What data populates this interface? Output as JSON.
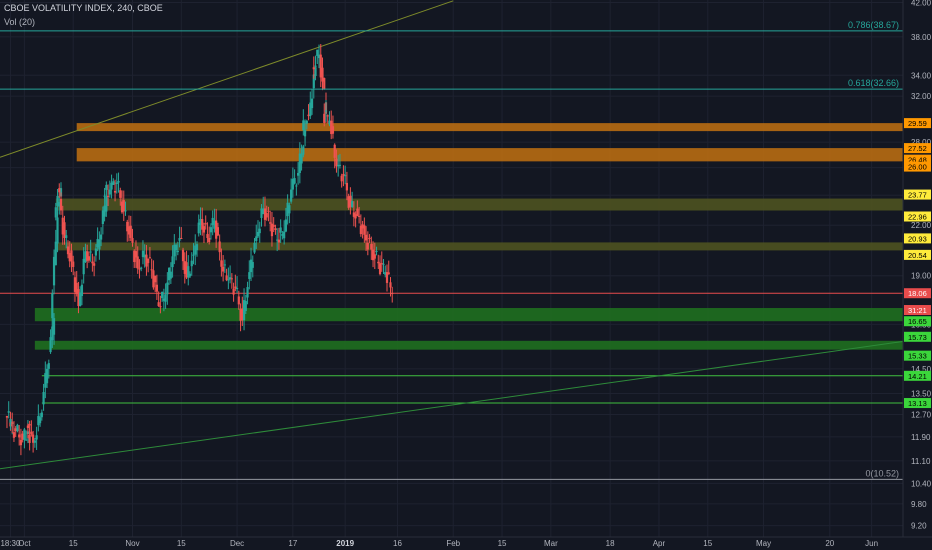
{
  "header": {
    "title": "CBOE VOLATILITY INDEX, 240, CBOE",
    "volume_indicator": "Vol (20)"
  },
  "colors": {
    "background": "#131722",
    "grid": "#1e2230",
    "up_candle": "#26a69a",
    "down_candle": "#ef5350",
    "fib_line": "#26a69a",
    "trendline": "#7e8b2a",
    "orange_band": "#b86c12",
    "olive_band": "#4e5220",
    "green_band": "#1f6f1f",
    "green_line": "#3fbf3f",
    "red_line": "#e84c4c",
    "axis_text": "#b2b5be"
  },
  "chart_data": {
    "type": "candlestick",
    "title": "CBOE VOLATILITY INDEX, 240, CBOE",
    "y_scale": "log",
    "ylim": [
      8.9,
      42.3
    ],
    "xlim": [
      "2018-09-24",
      "2019-06-10"
    ],
    "grid": true,
    "y_ticks": [
      "42.00",
      "38.00",
      "34.00",
      "32.00",
      "28.00",
      "26.00",
      "24.00",
      "22.00",
      "19.00",
      "16.50",
      "14.50",
      "13.50",
      "12.70",
      "11.90",
      "11.10",
      "10.40",
      "9.80",
      "9.20"
    ],
    "x_ticks": [
      {
        "label": "18:30",
        "date": "2018-09-27"
      },
      {
        "label": "Oct",
        "date": "2018-10-01"
      },
      {
        "label": "15",
        "date": "2018-10-15"
      },
      {
        "label": "Nov",
        "date": "2018-11-01"
      },
      {
        "label": "15",
        "date": "2018-11-15"
      },
      {
        "label": "Dec",
        "date": "2018-12-01"
      },
      {
        "label": "17",
        "date": "2018-12-17"
      },
      {
        "label": "2019",
        "date": "2019-01-01"
      },
      {
        "label": "16",
        "date": "2019-01-16"
      },
      {
        "label": "Feb",
        "date": "2019-02-01"
      },
      {
        "label": "15",
        "date": "2019-02-15"
      },
      {
        "label": "Mar",
        "date": "2019-03-01"
      },
      {
        "label": "18",
        "date": "2019-03-18"
      },
      {
        "label": "Apr",
        "date": "2019-04-01"
      },
      {
        "label": "15",
        "date": "2019-04-15"
      },
      {
        "label": "May",
        "date": "2019-05-01"
      },
      {
        "label": "20",
        "date": "2019-05-20"
      },
      {
        "label": "Jun",
        "date": "2019-06-01"
      }
    ],
    "price_series": {
      "x": [
        "2018-09-27",
        "2018-09-28",
        "2018-09-30",
        "2018-10-02",
        "2018-10-03",
        "2018-10-05",
        "2018-10-07",
        "2018-10-09",
        "2018-10-10",
        "2018-10-11",
        "2018-10-12",
        "2018-10-14",
        "2018-10-16",
        "2018-10-18",
        "2018-10-20",
        "2018-10-22",
        "2018-10-24",
        "2018-10-25",
        "2018-10-27",
        "2018-10-29",
        "2018-10-31",
        "2018-11-02",
        "2018-11-04",
        "2018-11-06",
        "2018-11-08",
        "2018-11-10",
        "2018-11-12",
        "2018-11-14",
        "2018-11-16",
        "2018-11-18",
        "2018-11-20",
        "2018-11-22",
        "2018-11-24",
        "2018-11-26",
        "2018-11-28",
        "2018-11-30",
        "2018-12-02",
        "2018-12-04",
        "2018-12-06",
        "2018-12-08",
        "2018-12-10",
        "2018-12-12",
        "2018-12-14",
        "2018-12-16",
        "2018-12-18",
        "2018-12-20",
        "2018-12-21",
        "2018-12-23",
        "2018-12-24",
        "2018-12-26",
        "2018-12-27",
        "2018-12-29",
        "2018-12-31",
        "2019-01-02",
        "2019-01-04",
        "2019-01-06",
        "2019-01-08",
        "2019-01-10",
        "2019-01-12",
        "2019-01-14"
      ],
      "close": [
        12.4,
        12.1,
        11.8,
        12.3,
        11.7,
        12.6,
        14.5,
        16.8,
        22.5,
        24.5,
        21.2,
        19.8,
        17.4,
        20.4,
        19.7,
        21.1,
        23.9,
        24.4,
        24.9,
        22.9,
        21.2,
        19.4,
        20.2,
        19.3,
        17.4,
        18.0,
        20.1,
        21.2,
        18.9,
        20.2,
        22.4,
        21.2,
        22.3,
        19.5,
        18.8,
        18.3,
        16.7,
        19.2,
        21.3,
        23.1,
        22.1,
        21.1,
        21.6,
        24.4,
        25.6,
        29.0,
        30.2,
        34.8,
        36.1,
        30.4,
        29.8,
        26.1,
        25.4,
        23.2,
        22.6,
        21.4,
        20.5,
        19.7,
        19.2,
        18.06
      ],
      "label": "18.06"
    },
    "fibonacci": [
      {
        "label": "0.786(38.67)",
        "value": 38.67
      },
      {
        "label": "0.618(32.66)",
        "value": 32.66
      },
      {
        "label": "0(10.52)",
        "value": 10.52
      }
    ],
    "zones": [
      {
        "type": "orange",
        "top": 29.59,
        "bottom": 29.0,
        "labels": [
          "29.59"
        ]
      },
      {
        "type": "orange",
        "top": 27.52,
        "bottom": 26.48,
        "labels": [
          "27.52",
          "26.48",
          "26.00"
        ]
      },
      {
        "type": "olive",
        "top": 23.77,
        "bottom": 22.96,
        "labels": [
          "23.77",
          "22.96"
        ]
      },
      {
        "type": "olive",
        "top": 20.93,
        "bottom": 20.54,
        "labels": [
          "20.93",
          "20.54"
        ]
      },
      {
        "type": "green",
        "top": 17.3,
        "bottom": 16.65,
        "labels": [
          "16.65"
        ]
      },
      {
        "type": "green",
        "top": 15.73,
        "bottom": 15.33,
        "labels": [
          "15.73",
          "15.33"
        ]
      }
    ],
    "levels": [
      {
        "type": "green",
        "value": 14.21,
        "label": "14.21"
      },
      {
        "type": "green",
        "value": 13.13,
        "label": "13.13"
      },
      {
        "type": "red",
        "value": 18.06,
        "label": "18.06"
      },
      {
        "type": "red",
        "value": 17.2,
        "label": "31:21"
      }
    ],
    "trendlines": [
      {
        "name": "upper",
        "from": {
          "x": "2018-09-24",
          "y": 26.8
        },
        "to": {
          "x": "2019-02-01",
          "y": 42.2
        }
      },
      {
        "name": "lower",
        "from": {
          "x": "2018-09-24",
          "y": 10.85
        },
        "to": {
          "x": "2019-06-10",
          "y": 15.7
        }
      }
    ]
  }
}
